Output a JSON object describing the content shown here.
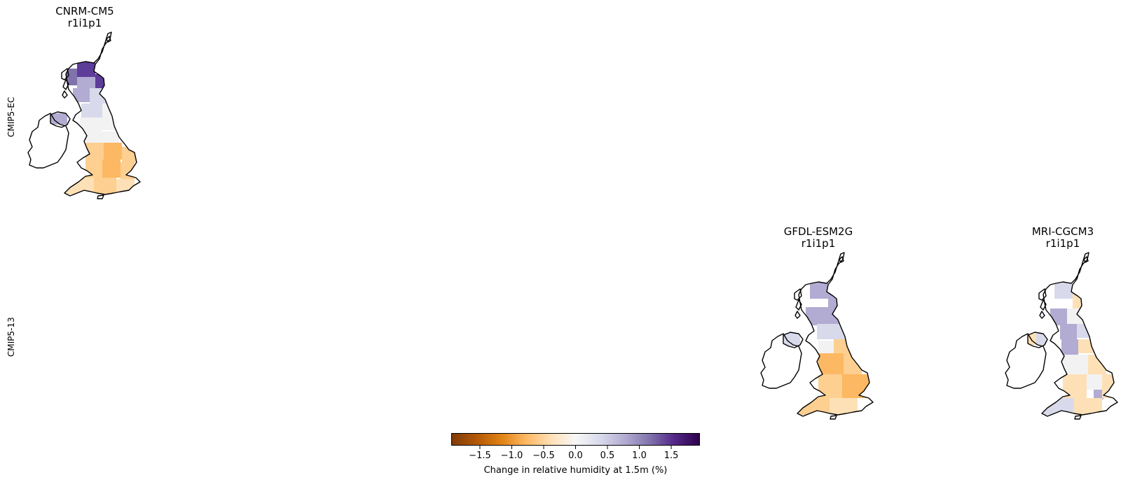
{
  "rows": [
    {
      "label": "CMIP5-EC"
    },
    {
      "label": "CMIP5-13"
    }
  ],
  "panels": [
    {
      "model": "CNRM-CM5",
      "member": "r1i1p1",
      "row": 0,
      "pattern": "strong-north"
    },
    {
      "model": "GFDL-ESM2G",
      "member": "r1i1p1",
      "row": 1,
      "pattern": "moderate"
    },
    {
      "model": "MRI-CGCM3",
      "member": "r1i1p1",
      "row": 1,
      "pattern": "weak"
    }
  ],
  "colorbar": {
    "label": "Change in relative humidity at 1.5m (%)",
    "colormap": "PuOr",
    "range": [
      -1.95,
      1.95
    ],
    "ticks": [
      "−1.5",
      "−1.0",
      "−0.5",
      "0.0",
      "0.5",
      "1.0",
      "1.5"
    ],
    "tick_values": [
      -1.5,
      -1.0,
      -0.5,
      0.0,
      0.5,
      1.0,
      1.5
    ],
    "colors": [
      "#7f3b08",
      "#b35806",
      "#e08214",
      "#fdb863",
      "#fee0b6",
      "#f7f7f7",
      "#d8daeb",
      "#b2abd2",
      "#8073ac",
      "#542788",
      "#2d004b"
    ]
  }
}
